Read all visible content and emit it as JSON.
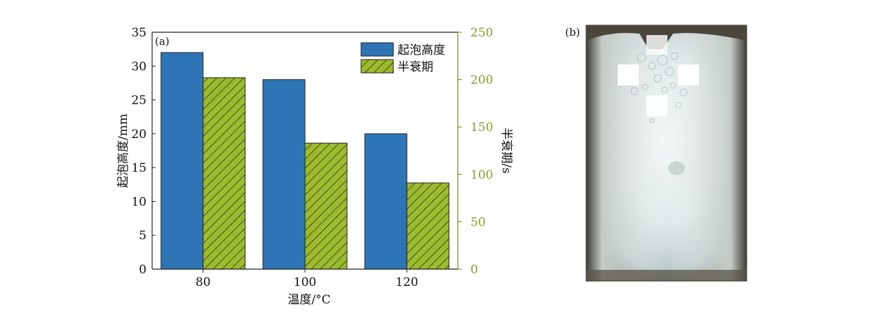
{
  "panel_a": {
    "label": "(a)",
    "chart_data": {
      "type": "bar",
      "categories": [
        "80",
        "100",
        "120"
      ],
      "series": [
        {
          "name": "起泡高度",
          "axis": "left",
          "unit": "mm",
          "values": [
            32,
            28,
            20
          ],
          "color": "#2e75b6",
          "pattern": "solid"
        },
        {
          "name": "半衰期",
          "axis": "right",
          "unit": "s",
          "values": [
            202,
            133,
            91
          ],
          "color": "#9cbb2c",
          "pattern": "diagonal-hatch"
        }
      ],
      "xlabel": "温度/°C",
      "ylabel_left": "起泡高度/mm",
      "ylabel_right": "半衰期/s",
      "ylim_left": [
        0,
        35
      ],
      "yticks_left": [
        0,
        5,
        10,
        15,
        20,
        25,
        30,
        35
      ],
      "ylim_right": [
        0,
        250
      ],
      "yticks_right": [
        0,
        50,
        100,
        150,
        200,
        250
      ],
      "right_axis_color": "#8a9a2a",
      "grid": false,
      "legend_placement": "top-right"
    }
  },
  "panel_b": {
    "label": "(b)",
    "photo": "foam-in-glass-column"
  }
}
